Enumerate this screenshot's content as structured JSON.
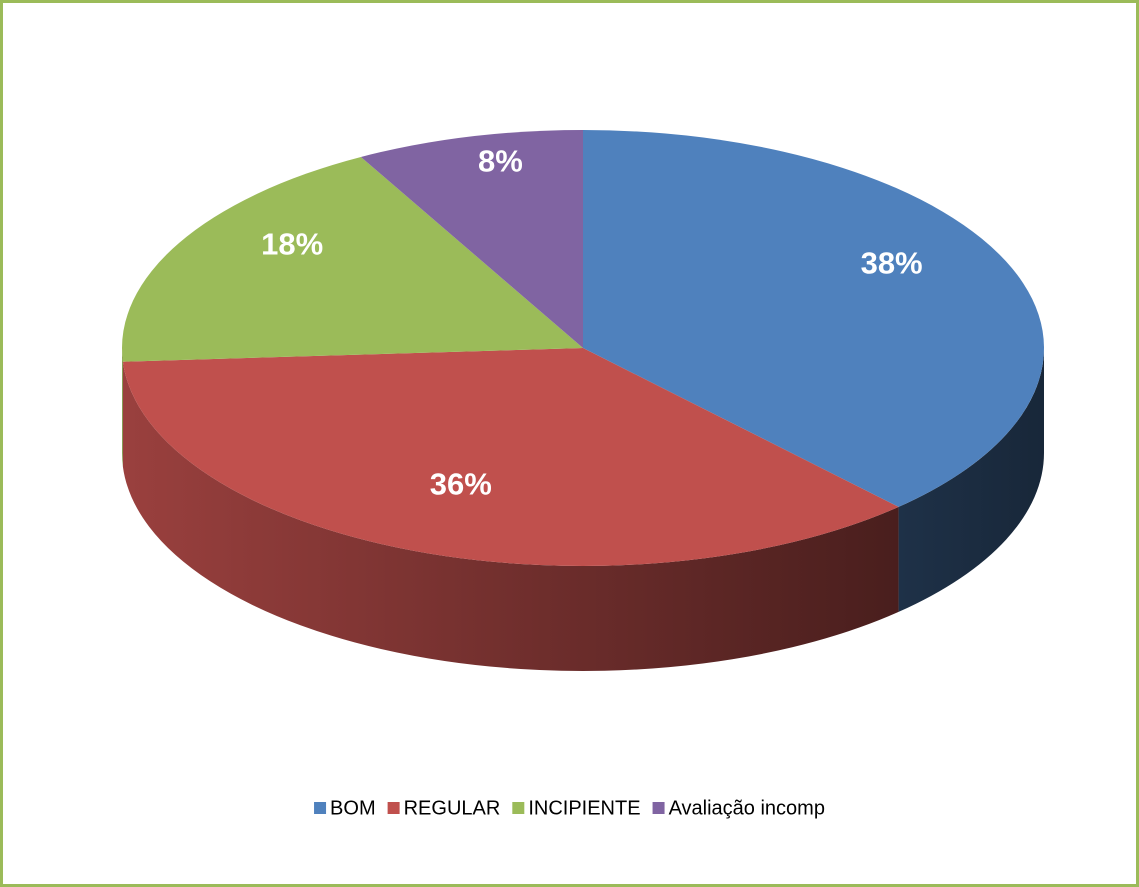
{
  "chart_data": {
    "type": "pie",
    "categories": [
      "BOM",
      "REGULAR",
      "INCIPIENTE",
      "Avaliação incomp"
    ],
    "values": [
      38,
      36,
      18,
      8
    ],
    "value_labels": [
      "38%",
      "36%",
      "18%",
      "8%"
    ],
    "colors": [
      "#4f81bd",
      "#c0504d",
      "#9bbb59",
      "#8064a2"
    ],
    "legend": "bottom"
  }
}
